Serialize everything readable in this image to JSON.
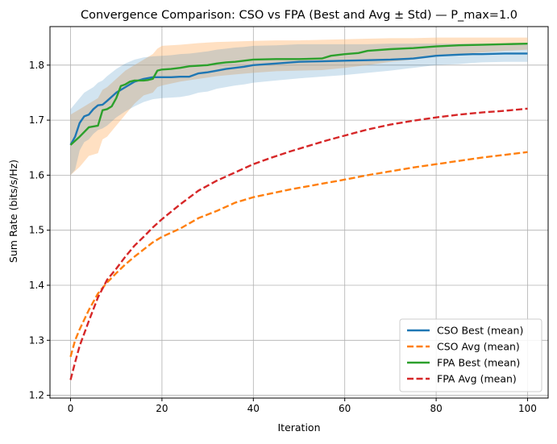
{
  "chart_data": {
    "type": "line",
    "title": "Convergence Comparison: CSO vs FPA (Best and Avg ± Std) — P_max=1.0",
    "xlabel": "Iteration",
    "ylabel": "Sum Rate (bits/s/Hz)",
    "xlim": [
      -4.5,
      104.5
    ],
    "ylim": [
      1.195,
      1.87
    ],
    "xticks": [
      0,
      20,
      40,
      60,
      80,
      100
    ],
    "yticks": [
      1.2,
      1.3,
      1.4,
      1.5,
      1.6,
      1.7,
      1.8
    ],
    "grid": true,
    "legend_position": "lower-right",
    "series": [
      {
        "name": "CSO Best (mean)",
        "color": "#1f77b4",
        "style": "solid",
        "x": [
          0,
          1,
          2,
          3,
          4,
          5,
          6,
          7,
          8,
          10,
          12,
          14,
          16,
          18,
          20,
          22,
          24,
          26,
          28,
          30,
          32,
          34,
          36,
          38,
          40,
          45,
          50,
          55,
          60,
          65,
          70,
          75,
          78,
          80,
          85,
          88,
          90,
          95,
          100
        ],
        "y": [
          1.655,
          1.67,
          1.695,
          1.707,
          1.71,
          1.72,
          1.727,
          1.728,
          1.735,
          1.75,
          1.76,
          1.77,
          1.775,
          1.778,
          1.778,
          1.778,
          1.779,
          1.779,
          1.785,
          1.787,
          1.79,
          1.793,
          1.795,
          1.797,
          1.8,
          1.803,
          1.806,
          1.807,
          1.808,
          1.809,
          1.81,
          1.812,
          1.815,
          1.817,
          1.819,
          1.82,
          1.82,
          1.821,
          1.821
        ],
        "band_upper": [
          1.72,
          1.73,
          1.74,
          1.75,
          1.755,
          1.76,
          1.768,
          1.772,
          1.78,
          1.793,
          1.803,
          1.81,
          1.814,
          1.816,
          1.817,
          1.818,
          1.82,
          1.821,
          1.823,
          1.825,
          1.828,
          1.83,
          1.832,
          1.833,
          1.835,
          1.836,
          1.838,
          1.838,
          1.838,
          1.838,
          1.839,
          1.839,
          1.839,
          1.839,
          1.839,
          1.839,
          1.839,
          1.839,
          1.839
        ],
        "band_lower": [
          1.6,
          1.61,
          1.645,
          1.66,
          1.665,
          1.675,
          1.682,
          1.685,
          1.69,
          1.705,
          1.716,
          1.725,
          1.733,
          1.738,
          1.74,
          1.741,
          1.742,
          1.745,
          1.75,
          1.752,
          1.757,
          1.76,
          1.763,
          1.765,
          1.768,
          1.772,
          1.776,
          1.779,
          1.782,
          1.786,
          1.79,
          1.795,
          1.798,
          1.8,
          1.802,
          1.804,
          1.805,
          1.806,
          1.806
        ]
      },
      {
        "name": "CSO Avg (mean)",
        "color": "#ff7f0e",
        "style": "dashed",
        "x": [
          0,
          1,
          2,
          4,
          6,
          8,
          10,
          12,
          14,
          16,
          18,
          20,
          24,
          28,
          32,
          36,
          40,
          44,
          48,
          52,
          56,
          60,
          65,
          70,
          75,
          80,
          85,
          90,
          95,
          100
        ],
        "y": [
          1.27,
          1.3,
          1.32,
          1.355,
          1.385,
          1.405,
          1.422,
          1.438,
          1.452,
          1.465,
          1.478,
          1.488,
          1.503,
          1.522,
          1.535,
          1.55,
          1.56,
          1.567,
          1.574,
          1.58,
          1.586,
          1.592,
          1.6,
          1.607,
          1.614,
          1.62,
          1.626,
          1.632,
          1.637,
          1.642
        ]
      },
      {
        "name": "FPA Best (mean)",
        "color": "#2ca02c",
        "style": "solid",
        "x": [
          0,
          2,
          4,
          6,
          7,
          8,
          9,
          10,
          11,
          12,
          13,
          14,
          16,
          17,
          18,
          19,
          20,
          22,
          24,
          26,
          28,
          30,
          32,
          34,
          36,
          38,
          40,
          45,
          50,
          55,
          57,
          60,
          63,
          65,
          70,
          75,
          80,
          85,
          90,
          95,
          100
        ],
        "y": [
          1.655,
          1.67,
          1.687,
          1.69,
          1.718,
          1.72,
          1.725,
          1.74,
          1.762,
          1.765,
          1.77,
          1.772,
          1.772,
          1.773,
          1.775,
          1.79,
          1.792,
          1.793,
          1.795,
          1.798,
          1.799,
          1.8,
          1.803,
          1.805,
          1.806,
          1.808,
          1.81,
          1.811,
          1.811,
          1.812,
          1.817,
          1.82,
          1.822,
          1.826,
          1.829,
          1.831,
          1.834,
          1.836,
          1.837,
          1.838,
          1.839
        ]
      },
      {
        "name": "FPA Avg (mean)",
        "color": "#d62728",
        "style": "dashed",
        "x": [
          0,
          1,
          2,
          4,
          6,
          8,
          10,
          12,
          14,
          16,
          18,
          20,
          24,
          28,
          32,
          36,
          40,
          44,
          48,
          52,
          56,
          60,
          65,
          70,
          75,
          80,
          85,
          90,
          95,
          100
        ],
        "y": [
          1.228,
          1.26,
          1.29,
          1.335,
          1.378,
          1.41,
          1.43,
          1.452,
          1.472,
          1.488,
          1.505,
          1.52,
          1.547,
          1.572,
          1.59,
          1.605,
          1.62,
          1.632,
          1.643,
          1.653,
          1.663,
          1.672,
          1.683,
          1.692,
          1.699,
          1.705,
          1.71,
          1.714,
          1.717,
          1.721
        ]
      }
    ],
    "bands": [
      {
        "color": "#ffbb78",
        "x": [
          0,
          2,
          4,
          6,
          7,
          8,
          10,
          12,
          14,
          16,
          18,
          19,
          20,
          24,
          28,
          32,
          36,
          40,
          45,
          50,
          55,
          60,
          65,
          70,
          75,
          80,
          85,
          90,
          95,
          100
        ],
        "upper": [
          1.71,
          1.72,
          1.73,
          1.74,
          1.755,
          1.76,
          1.775,
          1.79,
          1.8,
          1.81,
          1.82,
          1.83,
          1.835,
          1.837,
          1.84,
          1.842,
          1.843,
          1.844,
          1.845,
          1.845,
          1.846,
          1.847,
          1.848,
          1.849,
          1.849,
          1.85,
          1.85,
          1.85,
          1.85,
          1.85
        ],
        "lower": [
          1.6,
          1.615,
          1.635,
          1.64,
          1.665,
          1.67,
          1.69,
          1.71,
          1.73,
          1.745,
          1.75,
          1.76,
          1.763,
          1.77,
          1.775,
          1.78,
          1.783,
          1.786,
          1.789,
          1.79,
          1.791,
          1.795,
          1.8,
          1.806,
          1.81,
          1.815,
          1.82,
          1.823,
          1.826,
          1.828
        ]
      }
    ]
  }
}
